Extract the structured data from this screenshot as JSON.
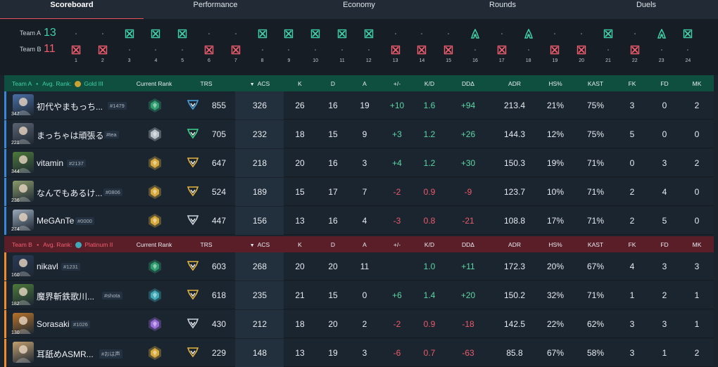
{
  "tabs": [
    "Scoreboard",
    "Performance",
    "Economy",
    "Rounds",
    "Duels"
  ],
  "active_tab": "Scoreboard",
  "timeline": {
    "team_a": {
      "label": "Team A",
      "score": "13",
      "color": "#3fd1a8"
    },
    "team_b": {
      "label": "Team B",
      "score": "11",
      "color": "#f25e6e"
    },
    "rounds": [
      {
        "n": "1",
        "winner": "B",
        "icon": "elimination-icon"
      },
      {
        "n": "2",
        "winner": "B",
        "icon": "elimination-icon"
      },
      {
        "n": "3",
        "winner": "A",
        "icon": "elimination-icon"
      },
      {
        "n": "4",
        "winner": "A",
        "icon": "elimination-icon"
      },
      {
        "n": "5",
        "winner": "A",
        "icon": "elimination-icon"
      },
      {
        "n": "6",
        "winner": "B",
        "icon": "elimination-icon"
      },
      {
        "n": "7",
        "winner": "B",
        "icon": "elimination-icon"
      },
      {
        "n": "8",
        "winner": "A",
        "icon": "elimination-icon"
      },
      {
        "n": "9",
        "winner": "A",
        "icon": "elimination-icon"
      },
      {
        "n": "10",
        "winner": "A",
        "icon": "elimination-icon"
      },
      {
        "n": "11",
        "winner": "A",
        "icon": "elimination-icon"
      },
      {
        "n": "12",
        "winner": "A",
        "icon": "elimination-icon"
      },
      {
        "n": "13",
        "winner": "B",
        "icon": "elimination-icon"
      },
      {
        "n": "14",
        "winner": "B",
        "icon": "elimination-icon"
      },
      {
        "n": "15",
        "winner": "B",
        "icon": "elimination-icon"
      },
      {
        "n": "16",
        "winner": "A",
        "icon": "defuse-icon"
      },
      {
        "n": "17",
        "winner": "B",
        "icon": "elimination-icon"
      },
      {
        "n": "18",
        "winner": "A",
        "icon": "defuse-icon"
      },
      {
        "n": "19",
        "winner": "B",
        "icon": "elimination-icon"
      },
      {
        "n": "20",
        "winner": "B",
        "icon": "elimination-icon"
      },
      {
        "n": "21",
        "winner": "A",
        "icon": "elimination-icon"
      },
      {
        "n": "22",
        "winner": "B",
        "icon": "elimination-icon"
      },
      {
        "n": "23",
        "winner": "A",
        "icon": "defuse-icon"
      },
      {
        "n": "24",
        "winner": "A",
        "icon": "elimination-icon"
      }
    ]
  },
  "columns": {
    "current_rank": "Current Rank",
    "trs": "TRS",
    "acs": "ACS",
    "k": "K",
    "d": "D",
    "a": "A",
    "plusminus": "+/-",
    "kd": "K/D",
    "dd": "DDΔ",
    "adr": "ADR",
    "hs": "HS%",
    "kast": "KAST",
    "fk": "FK",
    "fd": "FD",
    "mk": "MK"
  },
  "team_a_header": {
    "team": "Team A",
    "sep": "•",
    "avg_label": "Avg. Rank:",
    "avg_rank": "Gold III",
    "gem_color": "#c9a233"
  },
  "team_b_header": {
    "team": "Team B",
    "sep": "•",
    "avg_label": "Avg. Rank:",
    "avg_rank": "Platinum II",
    "gem_color": "#3fa9b8"
  },
  "colors": {
    "positive": "#5cd6a4",
    "negative": "#ee5a6a",
    "team_a_bar": "#3a86d8",
    "team_b_bar": "#f08a2a"
  },
  "team_a": [
    {
      "name": "初代やまもっち...",
      "tag": "#1479",
      "level": "347",
      "rank_icon": "ascendant-rank-icon",
      "rank_color": "#2f9e6e",
      "trs_icon": "trs-tier-icon",
      "trs_color": "#4aa3e0",
      "trs": "855",
      "acs": "326",
      "k": "26",
      "d": "16",
      "a": "19",
      "pm": "+10",
      "kd": "1.6",
      "dd": "+94",
      "adr": "213.4",
      "hs": "21%",
      "kast": "75%",
      "fk": "3",
      "fd": "0",
      "mk": "2",
      "avatar": "#4a6fa5"
    },
    {
      "name": "まっちゃは頑張る",
      "tag": "#tea",
      "level": "221",
      "rank_icon": "silver-rank-icon",
      "rank_color": "#b9c2c9",
      "trs_icon": "trs-tier-icon",
      "trs_color": "#3fd18a",
      "trs": "705",
      "acs": "232",
      "k": "18",
      "d": "15",
      "a": "9",
      "pm": "+3",
      "kd": "1.2",
      "dd": "+26",
      "adr": "144.3",
      "hs": "12%",
      "kast": "75%",
      "fk": "5",
      "fd": "0",
      "mk": "0",
      "avatar": "#5b6470"
    },
    {
      "name": "vitamin",
      "tag": "#2137",
      "level": "344",
      "rank_icon": "gold-rank-icon",
      "rank_color": "#d7a93b",
      "trs_icon": "trs-tier-icon",
      "trs_color": "#e3b341",
      "trs": "647",
      "acs": "218",
      "k": "20",
      "d": "16",
      "a": "3",
      "pm": "+4",
      "kd": "1.2",
      "dd": "+30",
      "adr": "150.3",
      "hs": "19%",
      "kast": "71%",
      "fk": "0",
      "fd": "3",
      "mk": "2",
      "avatar": "#4d7a3a"
    },
    {
      "name": "なんでもあるけ...",
      "tag": "#0806",
      "level": "236",
      "rank_icon": "gold-rank-icon",
      "rank_color": "#d7a93b",
      "trs_icon": "trs-tier-icon",
      "trs_color": "#e3b341",
      "trs": "524",
      "acs": "189",
      "k": "15",
      "d": "17",
      "a": "7",
      "pm": "-2",
      "kd": "0.9",
      "dd": "-9",
      "adr": "123.7",
      "hs": "10%",
      "kast": "71%",
      "fk": "2",
      "fd": "4",
      "mk": "0",
      "avatar": "#8a9a6a"
    },
    {
      "name": "MeGAnTe",
      "tag": "#0000",
      "level": "274",
      "rank_icon": "gold-rank-icon",
      "rank_color": "#d7a93b",
      "trs_icon": "trs-tier-icon",
      "trs_color": "#c9d1d9",
      "trs": "447",
      "acs": "156",
      "k": "13",
      "d": "16",
      "a": "4",
      "pm": "-3",
      "kd": "0.8",
      "dd": "-21",
      "adr": "108.8",
      "hs": "17%",
      "kast": "71%",
      "fk": "2",
      "fd": "5",
      "mk": "0",
      "avatar": "#9aa8b8"
    }
  ],
  "team_b": [
    {
      "name": "nikavl",
      "tag": "#1231",
      "level": "160",
      "rank_icon": "ascendant-rank-icon",
      "rank_color": "#2f9e6e",
      "trs_icon": "trs-tier-icon",
      "trs_color": "#e3b341",
      "trs": "603",
      "acs": "268",
      "k": "20",
      "d": "20",
      "a": "11",
      "pm": "",
      "kd": "1.0",
      "dd": "+11",
      "adr": "172.3",
      "hs": "20%",
      "kast": "67%",
      "fk": "4",
      "fd": "3",
      "mk": "3",
      "avatar": "#2a3a55"
    },
    {
      "name": "魔界斬鉄歌川...",
      "tag": "#shota",
      "level": "182",
      "rank_icon": "platinum-rank-icon",
      "rank_color": "#3fa9b8",
      "trs_icon": "trs-tier-icon",
      "trs_color": "#e3b341",
      "trs": "618",
      "acs": "235",
      "k": "21",
      "d": "15",
      "a": "0",
      "pm": "+6",
      "kd": "1.4",
      "dd": "+20",
      "adr": "150.2",
      "hs": "32%",
      "kast": "71%",
      "fk": "1",
      "fd": "2",
      "mk": "1",
      "avatar": "#4d7a3a"
    },
    {
      "name": "Sorasaki",
      "tag": "#1026",
      "level": "130",
      "rank_icon": "diamond-rank-icon",
      "rank_color": "#9a6ad8",
      "trs_icon": "trs-tier-icon",
      "trs_color": "#c9d1d9",
      "trs": "430",
      "acs": "212",
      "k": "18",
      "d": "20",
      "a": "2",
      "pm": "-2",
      "kd": "0.9",
      "dd": "-18",
      "adr": "142.5",
      "hs": "22%",
      "kast": "62%",
      "fk": "3",
      "fd": "3",
      "mk": "1",
      "avatar": "#b8742a"
    },
    {
      "name": "耳舐めASMR...",
      "tag": "#おは声",
      "level": "",
      "rank_icon": "gold-rank-icon",
      "rank_color": "#d7a93b",
      "trs_icon": "trs-tier-icon",
      "trs_color": "#e3b341",
      "trs": "229",
      "acs": "148",
      "k": "13",
      "d": "19",
      "a": "3",
      "pm": "-6",
      "kd": "0.7",
      "dd": "-63",
      "adr": "85.8",
      "hs": "67%",
      "kast": "58%",
      "fk": "3",
      "fd": "1",
      "mk": "2",
      "avatar": "#c2a070"
    }
  ]
}
